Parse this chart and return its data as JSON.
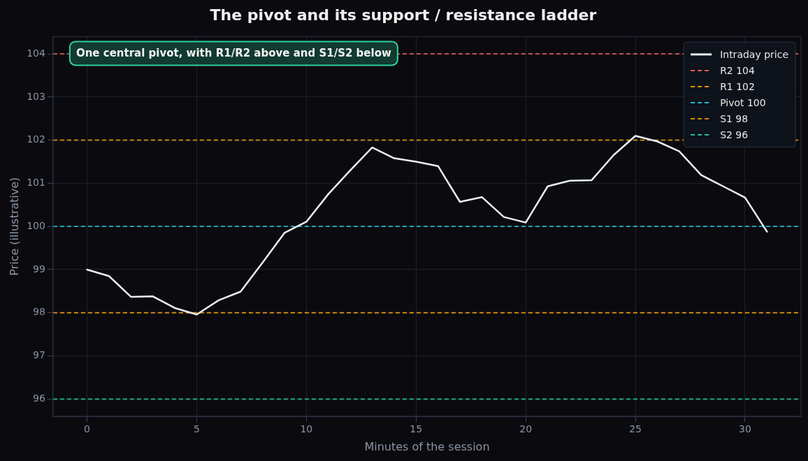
{
  "chart_data": {
    "type": "line",
    "title": "The pivot and its support / resistance ladder",
    "xlabel": "Minutes of the session",
    "ylabel": "Price (illustrative)",
    "x": [
      0,
      1,
      2,
      3,
      4,
      5,
      6,
      7,
      8,
      9,
      10,
      11,
      12,
      13,
      14,
      15,
      16,
      17,
      18,
      19,
      20,
      21,
      22,
      23,
      24,
      25,
      26,
      27,
      28,
      29,
      30,
      31
    ],
    "series": [
      {
        "name": "Intraday price",
        "color": "#e8edf3",
        "values": [
          99.0,
          98.85,
          98.37,
          98.38,
          98.11,
          97.96,
          98.29,
          98.49,
          99.16,
          99.85,
          100.11,
          100.75,
          101.3,
          101.83,
          101.58,
          101.5,
          101.4,
          100.57,
          100.68,
          100.22,
          100.09,
          100.93,
          101.06,
          101.07,
          101.65,
          102.1,
          101.97,
          101.74,
          101.19,
          100.93,
          100.67,
          99.88
        ]
      }
    ],
    "ref_lines": [
      {
        "axis": "y",
        "value": 104,
        "label": "R2 104",
        "color": "#e05a5a",
        "line_style": "dashed"
      },
      {
        "axis": "y",
        "value": 102,
        "label": "R1 102",
        "color": "#e0940f",
        "line_style": "dashed"
      },
      {
        "axis": "y",
        "value": 100,
        "label": "Pivot 100",
        "color": "#22b8cf",
        "line_style": "dashed"
      },
      {
        "axis": "y",
        "value": 98,
        "label": "S1 98",
        "color": "#d68a0b",
        "line_style": "dashed"
      },
      {
        "axis": "y",
        "value": 96,
        "label": "S2 96",
        "color": "#1fbf8f",
        "line_style": "dashed"
      }
    ],
    "annotations": [
      "One central pivot, with R1/R2 above and S1/S2 below"
    ],
    "xlim": [
      -1.55,
      32.55
    ],
    "ylim": [
      95.6,
      104.4
    ],
    "xticks": [
      0,
      5,
      10,
      15,
      20,
      25,
      30
    ],
    "yticks": [
      96,
      97,
      98,
      99,
      100,
      101,
      102,
      103,
      104
    ],
    "grid": true,
    "legend": "top right",
    "marker": "none",
    "line_style": "solid"
  }
}
